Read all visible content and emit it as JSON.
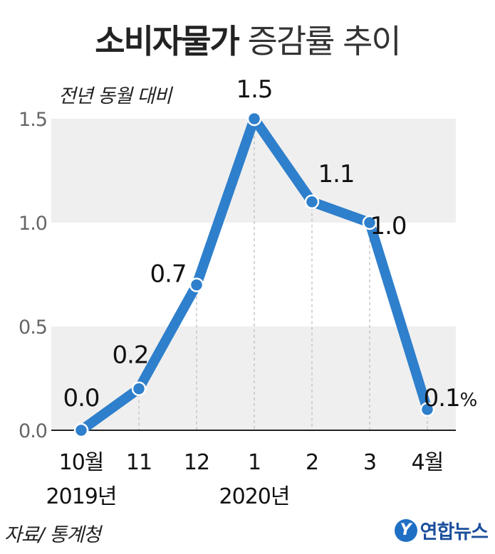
{
  "title": {
    "bold": "소비자물가",
    "light": "증감률 추이"
  },
  "unit_note": "전년 동월 대비",
  "source": "자료/ 통계청",
  "logo": {
    "mark": "Y",
    "text": "연합뉴스"
  },
  "colors": {
    "line": "#2e7fcc",
    "band": "#efefef",
    "axis": "#222222",
    "grid_dash": "#bbbbbb"
  },
  "chart_data": {
    "type": "line",
    "categories": [
      "10월",
      "11",
      "12",
      "1",
      "2",
      "3",
      "4월"
    ],
    "year_labels": [
      {
        "text": "2019년",
        "index": 0
      },
      {
        "text": "2020년",
        "index": 3
      }
    ],
    "values": [
      0.0,
      0.2,
      0.7,
      1.5,
      1.1,
      1.0,
      0.1
    ],
    "data_labels": [
      "0.0",
      "0.2",
      "0.7",
      "1.5",
      "1.1",
      "1.0",
      "0.1"
    ],
    "last_label_suffix": "%",
    "yticks": [
      "0.0",
      "0.5",
      "1.0",
      "1.5"
    ],
    "ylim": [
      0,
      1.5
    ],
    "ylabel": "전년 동월 대비",
    "grid": "alternating bands"
  }
}
